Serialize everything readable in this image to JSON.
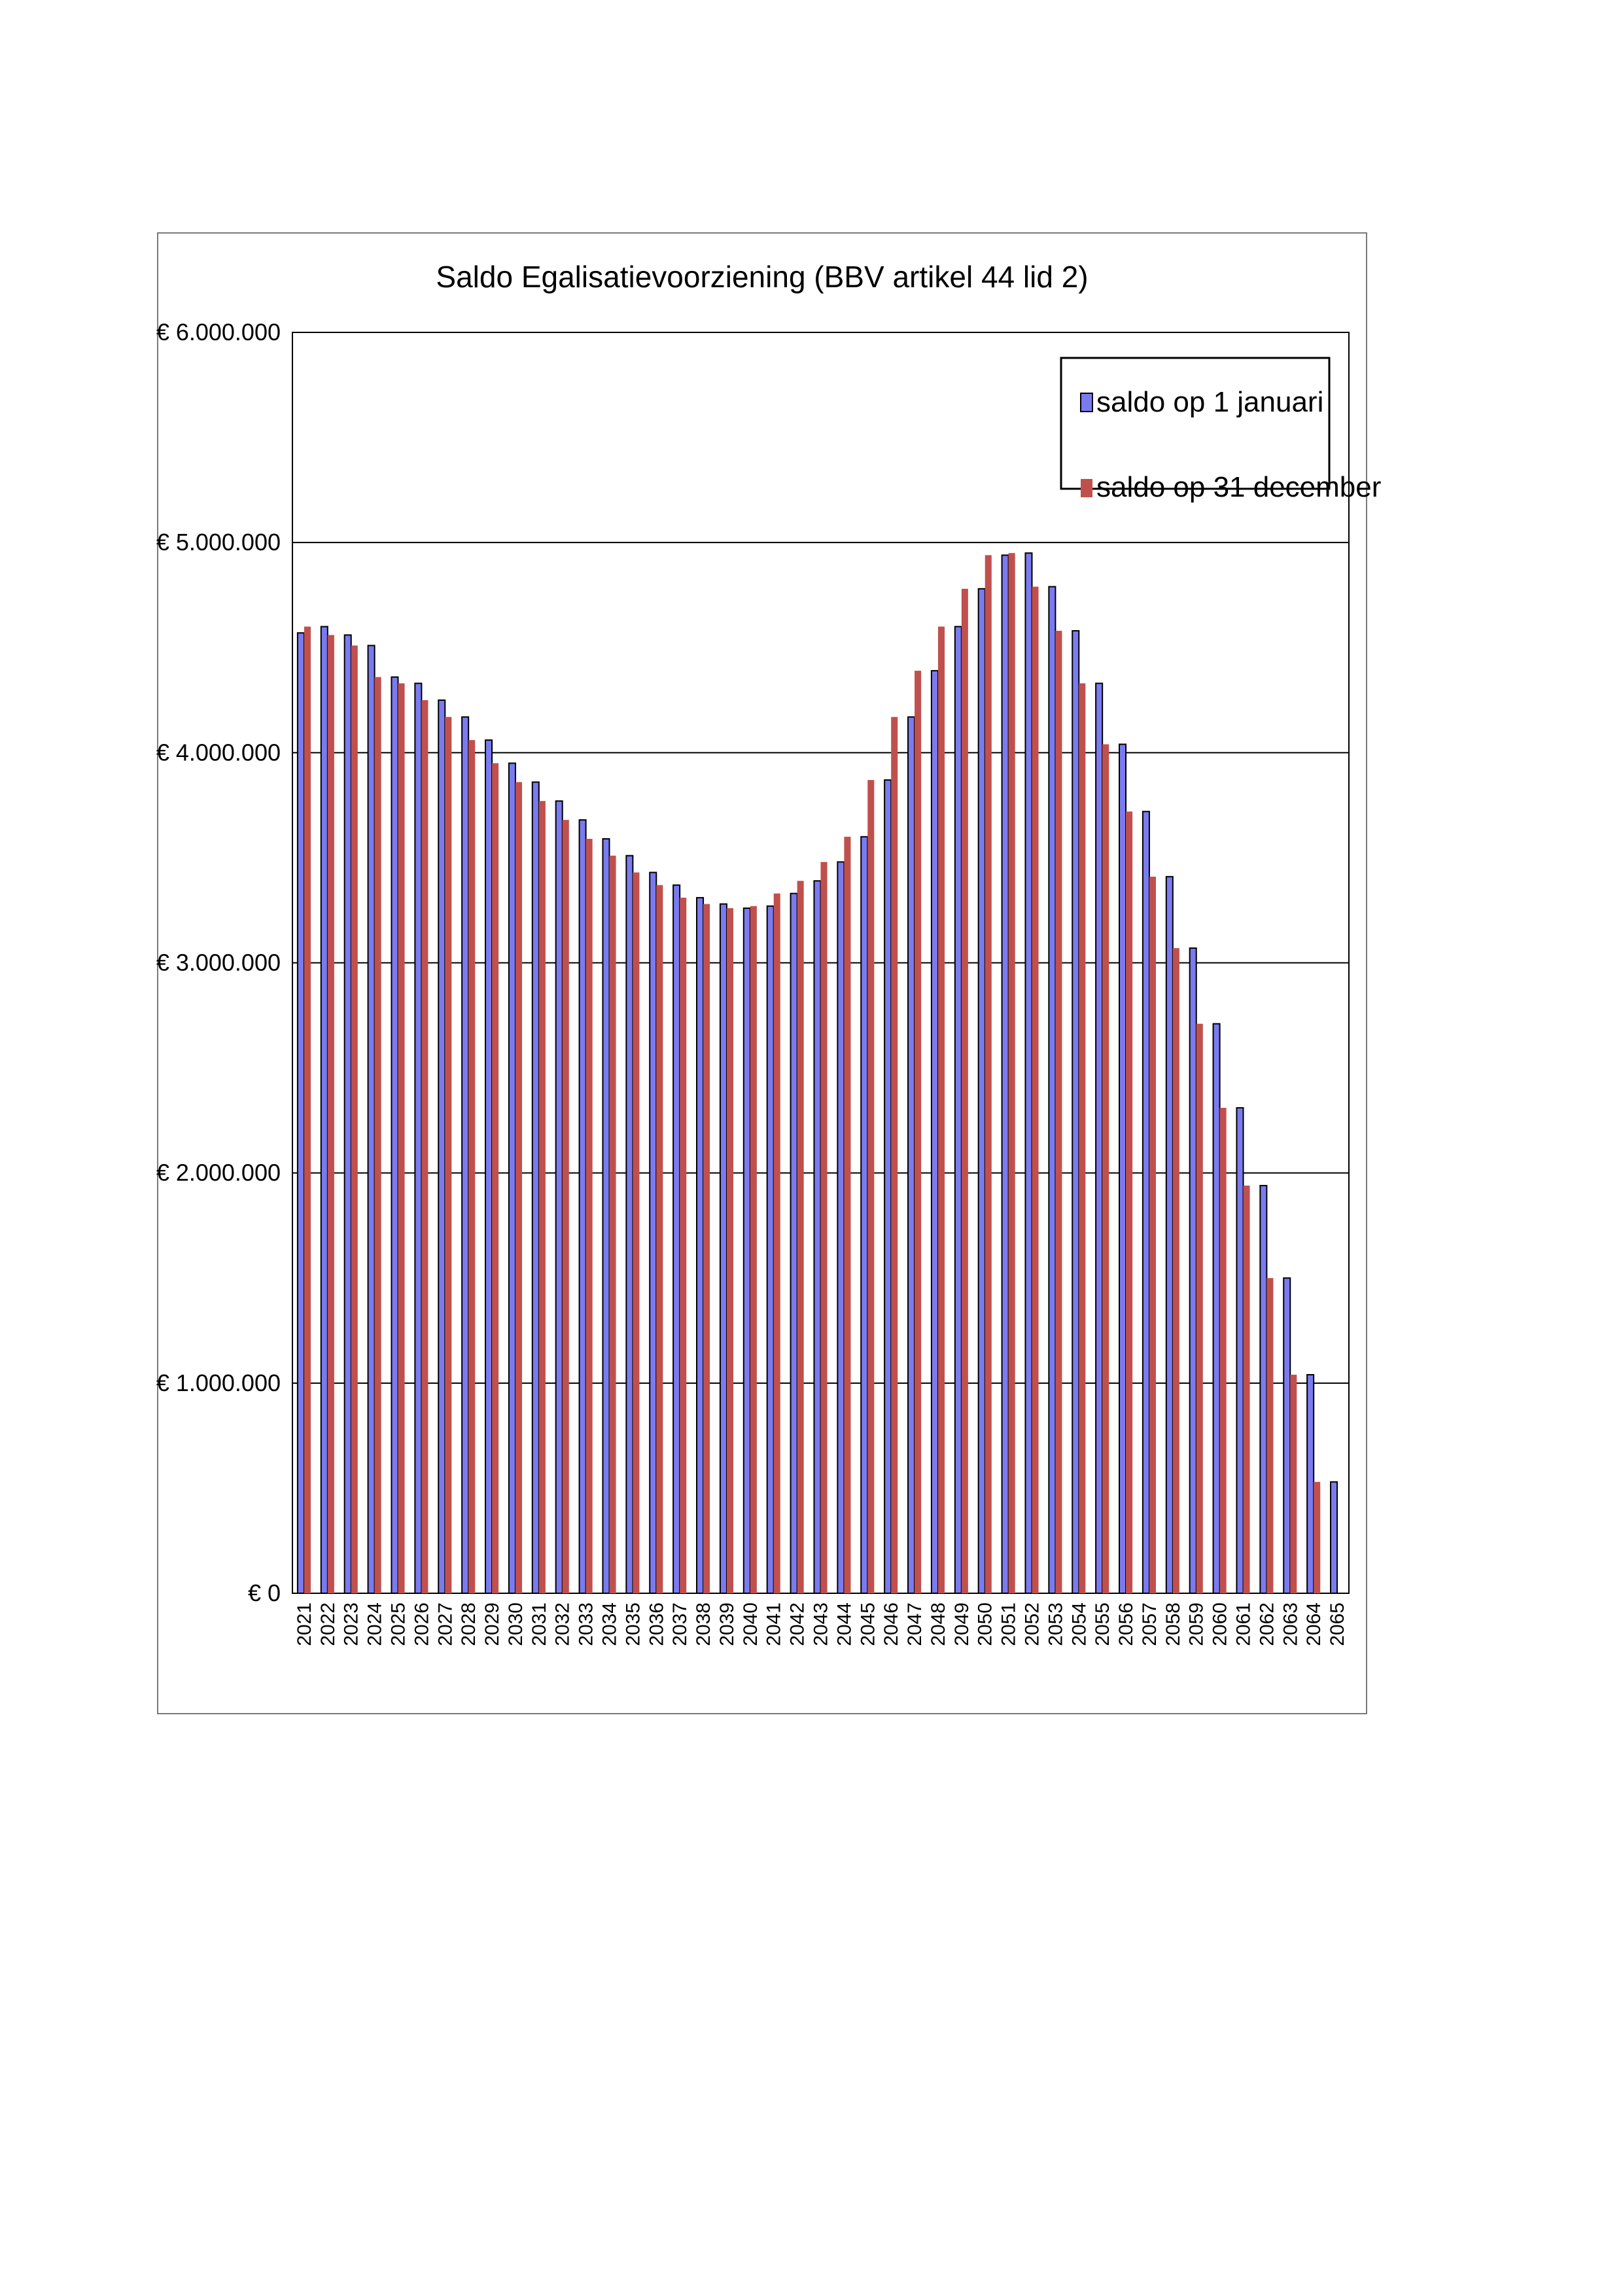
{
  "chart_data": {
    "type": "bar",
    "title": "Saldo Egalisatievoorziening (BBV artikel 44 lid 2)",
    "xlabel": "",
    "ylabel": "",
    "ylim": [
      0,
      6000000
    ],
    "yticks": [
      0,
      1000000,
      2000000,
      3000000,
      4000000,
      5000000,
      6000000
    ],
    "ytick_labels": [
      "€ 0",
      "€ 1.000.000",
      "€ 2.000.000",
      "€ 3.000.000",
      "€ 4.000.000",
      "€ 5.000.000",
      "€ 6.000.000"
    ],
    "grid": true,
    "legend_position": "top-right",
    "categories": [
      "2021",
      "2022",
      "2023",
      "2024",
      "2025",
      "2026",
      "2027",
      "2028",
      "2029",
      "2030",
      "2031",
      "2032",
      "2033",
      "2034",
      "2035",
      "2036",
      "2037",
      "2038",
      "2039",
      "2040",
      "2041",
      "2042",
      "2043",
      "2044",
      "2045",
      "2046",
      "2047",
      "2048",
      "2049",
      "2050",
      "2051",
      "2052",
      "2053",
      "2054",
      "2055",
      "2056",
      "2057",
      "2058",
      "2059",
      "2060",
      "2061",
      "2062",
      "2063",
      "2064",
      "2065"
    ],
    "series": [
      {
        "name": "saldo op 1 januari",
        "color": "#7b7bf0",
        "values": [
          4570000,
          4600000,
          4560000,
          4510000,
          4360000,
          4330000,
          4250000,
          4170000,
          4060000,
          3950000,
          3860000,
          3770000,
          3680000,
          3590000,
          3510000,
          3430000,
          3370000,
          3310000,
          3280000,
          3260000,
          3270000,
          3330000,
          3390000,
          3480000,
          3600000,
          3870000,
          4170000,
          4390000,
          4600000,
          4780000,
          4940000,
          4950000,
          4790000,
          4580000,
          4330000,
          4040000,
          3720000,
          3410000,
          3070000,
          2710000,
          2310000,
          1940000,
          1500000,
          1040000,
          530000
        ]
      },
      {
        "name": "saldo op 31 december",
        "color": "#c0504d",
        "values": [
          4600000,
          4560000,
          4510000,
          4360000,
          4330000,
          4250000,
          4170000,
          4060000,
          3950000,
          3860000,
          3770000,
          3680000,
          3590000,
          3510000,
          3430000,
          3370000,
          3310000,
          3280000,
          3260000,
          3270000,
          3330000,
          3390000,
          3480000,
          3600000,
          3870000,
          4170000,
          4390000,
          4600000,
          4780000,
          4940000,
          4950000,
          4790000,
          4580000,
          4330000,
          4040000,
          3720000,
          3410000,
          3070000,
          2710000,
          2310000,
          1940000,
          1500000,
          1040000,
          530000,
          0
        ]
      }
    ]
  }
}
